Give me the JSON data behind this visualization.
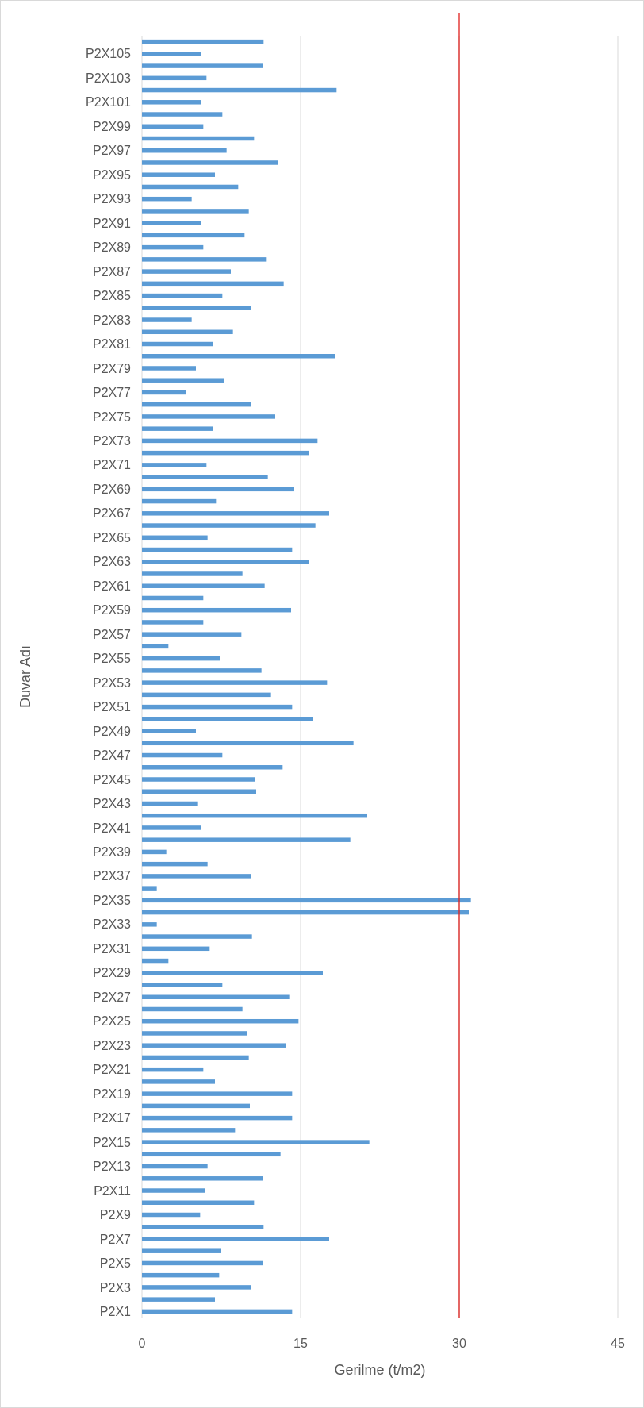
{
  "chart_data": {
    "type": "bar",
    "orientation": "horizontal",
    "xlabel": "Gerilme (t/m2)",
    "ylabel": "Duvar Adı",
    "color": "#5b9bd5",
    "categories": [
      null,
      "P2X105",
      null,
      "P2X103",
      null,
      "P2X101",
      null,
      "P2X99",
      null,
      "P2X97",
      null,
      "P2X95",
      null,
      "P2X93",
      null,
      "P2X91",
      null,
      "P2X89",
      null,
      "P2X87",
      null,
      "P2X85",
      null,
      "P2X83",
      null,
      "P2X81",
      null,
      "P2X79",
      null,
      "P2X77",
      null,
      "P2X75",
      null,
      "P2X73",
      null,
      "P2X71",
      null,
      "P2X69",
      null,
      "P2X67",
      null,
      "P2X65",
      null,
      "P2X63",
      null,
      "P2X61",
      null,
      "P2X59",
      null,
      "P2X57",
      null,
      "P2X55",
      null,
      "P2X53",
      null,
      "P2X51",
      null,
      "P2X49",
      null,
      "P2X47",
      null,
      "P2X45",
      null,
      "P2X43",
      null,
      "P2X41",
      null,
      "P2X39",
      null,
      "P2X37",
      null,
      "P2X35",
      null,
      "P2X33",
      null,
      "P2X31",
      null,
      "P2X29",
      null,
      "P2X27",
      null,
      "P2X25",
      null,
      "P2X23",
      null,
      "P2X21",
      null,
      "P2X19",
      null,
      "P2X17",
      null,
      "P2X15",
      null,
      "P2X13",
      null,
      "P2X11",
      null,
      "P2X9",
      null,
      "P2X7",
      null,
      "P2X5",
      null,
      "P2X3",
      null,
      "P2X1"
    ],
    "values": [
      11.5,
      5.6,
      11.4,
      6.1,
      18.4,
      5.6,
      7.6,
      5.8,
      10.6,
      8.0,
      12.9,
      6.9,
      9.1,
      4.7,
      10.1,
      5.6,
      9.7,
      5.8,
      11.8,
      8.4,
      13.4,
      7.6,
      10.3,
      4.7,
      8.6,
      6.7,
      18.3,
      5.1,
      7.8,
      4.2,
      10.3,
      12.6,
      6.7,
      16.6,
      15.8,
      6.1,
      11.9,
      14.4,
      7.0,
      17.7,
      16.4,
      6.2,
      14.2,
      15.8,
      9.5,
      11.6,
      5.8,
      14.1,
      5.8,
      9.4,
      2.5,
      7.4,
      11.3,
      17.5,
      12.2,
      14.2,
      16.2,
      5.1,
      20.0,
      7.6,
      13.3,
      10.7,
      10.8,
      5.3,
      21.3,
      5.6,
      19.7,
      2.3,
      6.2,
      10.3,
      1.4,
      31.1,
      30.9,
      1.4,
      10.4,
      6.4,
      2.5,
      17.1,
      7.6,
      14.0,
      9.5,
      14.8,
      9.9,
      13.6,
      10.1,
      5.8,
      6.9,
      14.2,
      10.2,
      14.2,
      8.8,
      21.5,
      13.1,
      6.2,
      11.4,
      6.0,
      10.6,
      5.5,
      11.5,
      17.7,
      7.5,
      11.4,
      7.3,
      10.3,
      6.9,
      14.2
    ],
    "xlim": [
      0,
      45
    ],
    "xticks": [
      0,
      15,
      30,
      45
    ],
    "grid": "x",
    "ref_lines": [
      {
        "axis": "x",
        "value": 30,
        "color": "#e0201c"
      }
    ]
  }
}
